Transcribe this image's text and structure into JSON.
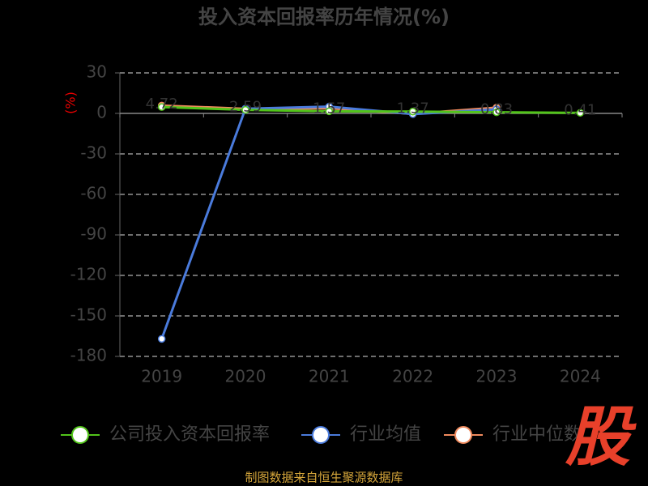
{
  "chart_data": {
    "type": "line",
    "title": "投入资本回报率历年情况(%)",
    "y_label": "(%)",
    "categories": [
      "2019",
      "2020",
      "2021",
      "2022",
      "2023",
      "2024"
    ],
    "series": [
      {
        "name": "公司投入资本回报率",
        "color": "#52c41a",
        "values": [
          4.72,
          2.59,
          1.57,
          1.37,
          0.83,
          0.41
        ]
      },
      {
        "name": "行业均值",
        "color": "#4a7bdc",
        "values": [
          -167,
          3.5,
          5,
          -0.5,
          3,
          null
        ]
      },
      {
        "name": "行业中位数",
        "color": "#f08a5d",
        "values": [
          5.8,
          3.4,
          3.8,
          -0.3,
          4.3,
          null
        ]
      }
    ],
    "ylim": [
      -180,
      30
    ],
    "yticks": [
      30,
      0,
      -30,
      -60,
      -90,
      -120,
      -150,
      -180
    ],
    "grid": true,
    "source": "制图数据来自恒生聚源数据库",
    "watermark": "股"
  }
}
